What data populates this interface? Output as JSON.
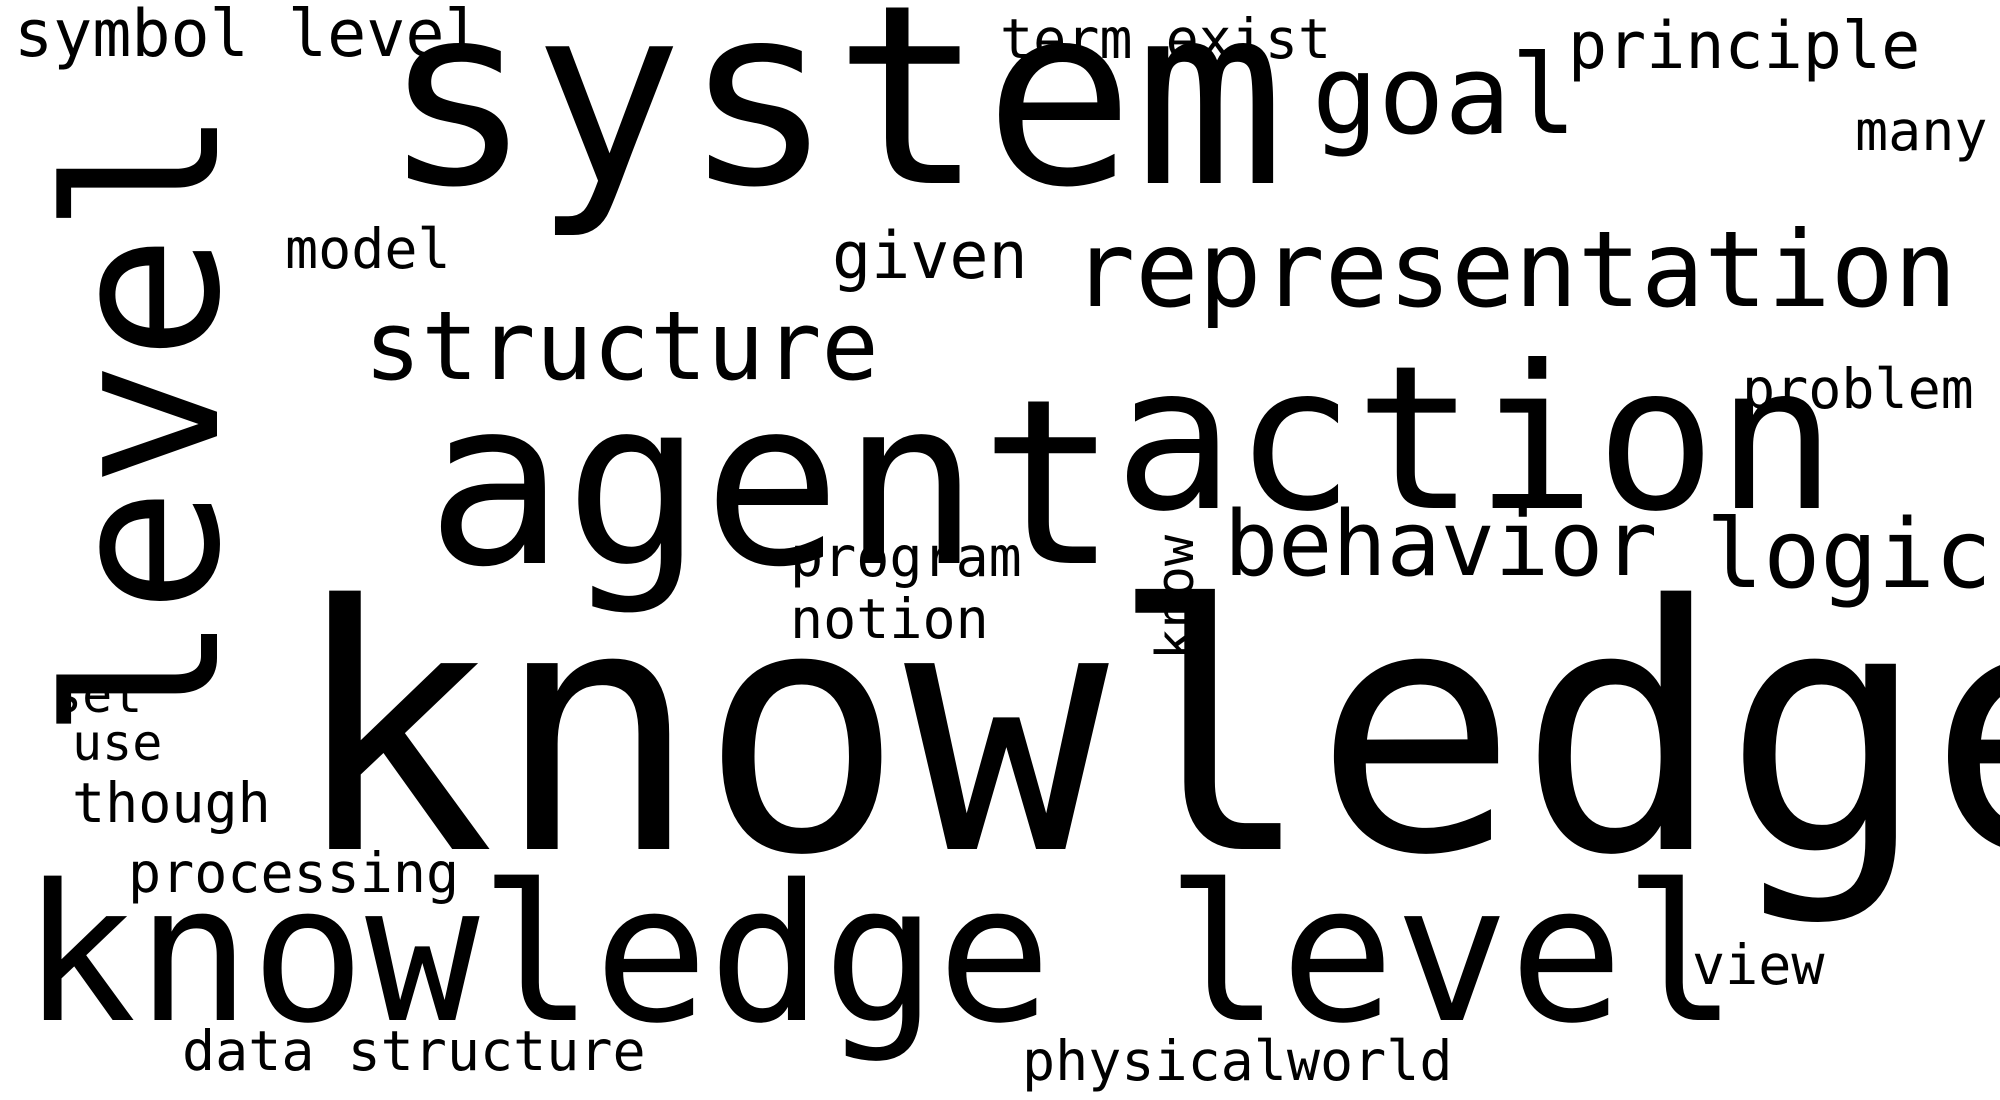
{
  "colors": {
    "background": "#ffffff",
    "text": "#000000"
  },
  "words": {
    "knowledge": "knowledge",
    "knowledge_level": "knowledge level",
    "system": "system",
    "level": "level",
    "agent": "agent",
    "action": "action",
    "representation": "representation",
    "structure": "structure",
    "goal": "goal",
    "behavior": "behavior",
    "logic": "logic",
    "symbol_level": "symbol level",
    "term_exist": "term exist",
    "principle": "principle",
    "many": "many",
    "model": "model",
    "given": "given",
    "problem": "problem",
    "program": "program",
    "notion": "notion",
    "know": "know",
    "set": "set",
    "use": "use",
    "though": "though",
    "processing": "processing",
    "data_structure": "data structure",
    "physicalworld": "physicalworld",
    "view": "view"
  }
}
